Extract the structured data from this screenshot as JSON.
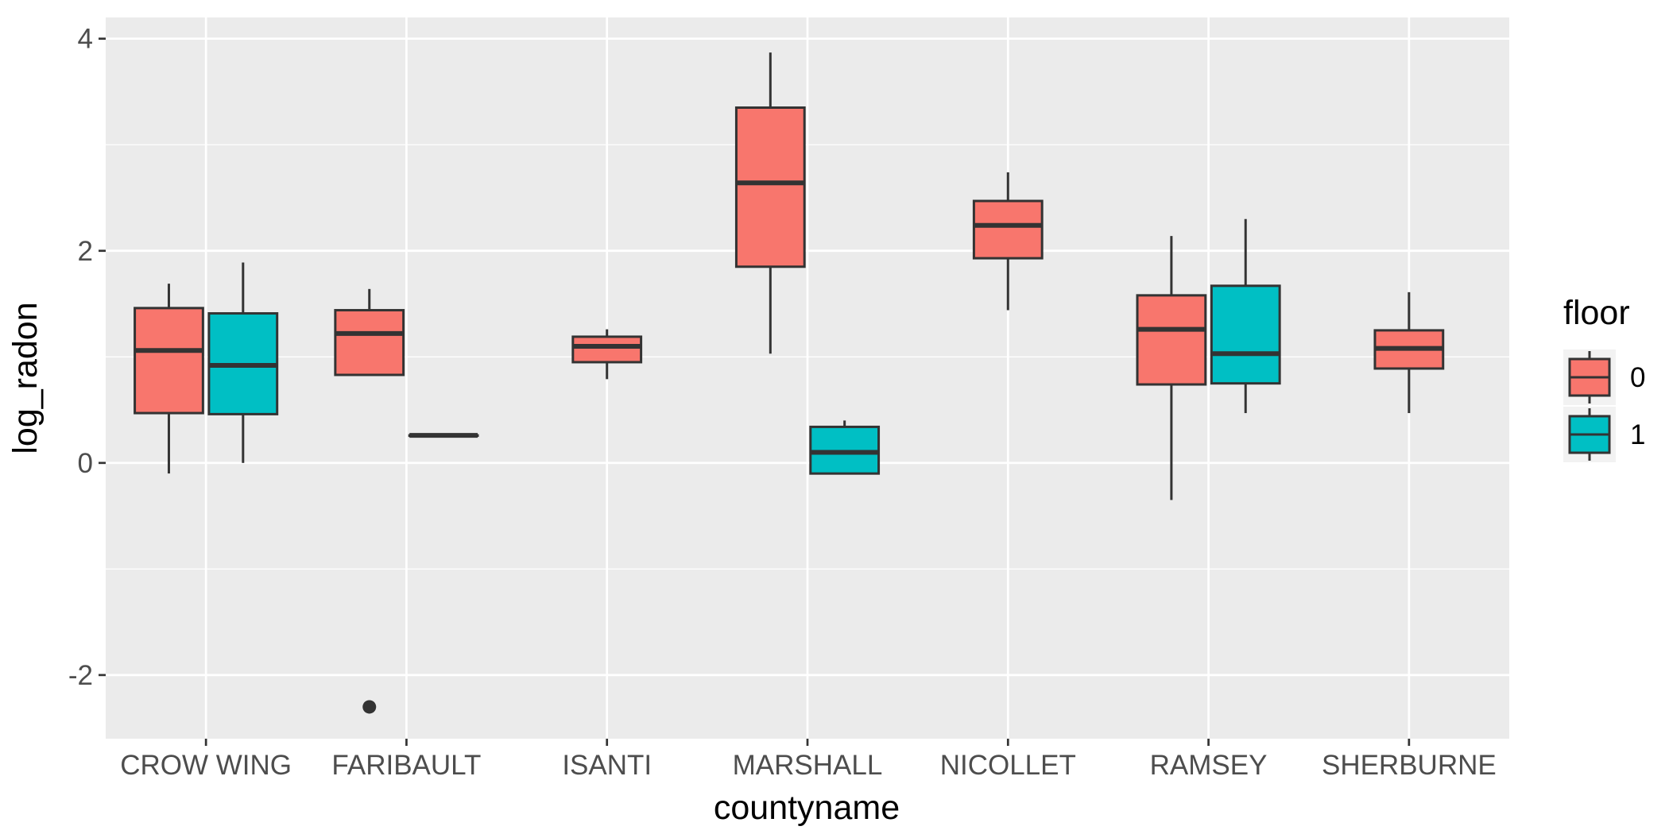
{
  "chart_data": {
    "type": "boxplot",
    "xlabel": "countyname",
    "ylabel": "log_radon",
    "ylim": [
      -2.6,
      4.2
    ],
    "yticks": [
      -2,
      0,
      2,
      4
    ],
    "ytick_labels": [
      "-2",
      "0",
      "2",
      "4"
    ],
    "grid": true,
    "categories": [
      "CROW WING",
      "FARIBAULT",
      "ISANTI",
      "MARSHALL",
      "NICOLLET",
      "RAMSEY",
      "SHERBURNE"
    ],
    "legend": {
      "title": "floor",
      "position": "right",
      "entries": [
        {
          "label": "0",
          "color": "#F8766D"
        },
        {
          "label": "1",
          "color": "#00BFC4"
        }
      ]
    },
    "boxes": [
      {
        "category": "CROW WING",
        "floor": "0",
        "lower_whisker": -0.1,
        "q1": 0.47,
        "median": 1.06,
        "q3": 1.46,
        "upper_whisker": 1.69,
        "outliers": []
      },
      {
        "category": "CROW WING",
        "floor": "1",
        "lower_whisker": 0.0,
        "q1": 0.46,
        "median": 0.92,
        "q3": 1.41,
        "upper_whisker": 1.89,
        "outliers": []
      },
      {
        "category": "FARIBAULT",
        "floor": "0",
        "lower_whisker": 0.83,
        "q1": 0.83,
        "median": 1.22,
        "q3": 1.44,
        "upper_whisker": 1.64,
        "outliers": [
          -2.3
        ]
      },
      {
        "category": "FARIBAULT",
        "floor": "1",
        "lower_whisker": 0.26,
        "q1": 0.26,
        "median": 0.26,
        "q3": 0.26,
        "upper_whisker": 0.26,
        "outliers": []
      },
      {
        "category": "ISANTI",
        "floor": "0",
        "lower_whisker": 0.79,
        "q1": 0.95,
        "median": 1.1,
        "q3": 1.19,
        "upper_whisker": 1.26,
        "outliers": []
      },
      {
        "category": "MARSHALL",
        "floor": "0",
        "lower_whisker": 1.03,
        "q1": 1.85,
        "median": 2.64,
        "q3": 3.35,
        "upper_whisker": 3.87,
        "outliers": []
      },
      {
        "category": "MARSHALL",
        "floor": "1",
        "lower_whisker": -0.1,
        "q1": -0.1,
        "median": 0.1,
        "q3": 0.34,
        "upper_whisker": 0.4,
        "outliers": []
      },
      {
        "category": "NICOLLET",
        "floor": "0",
        "lower_whisker": 1.44,
        "q1": 1.93,
        "median": 2.24,
        "q3": 2.47,
        "upper_whisker": 2.74,
        "outliers": []
      },
      {
        "category": "RAMSEY",
        "floor": "0",
        "lower_whisker": -0.35,
        "q1": 0.74,
        "median": 1.26,
        "q3": 1.58,
        "upper_whisker": 2.14,
        "outliers": []
      },
      {
        "category": "RAMSEY",
        "floor": "1",
        "lower_whisker": 0.47,
        "q1": 0.75,
        "median": 1.03,
        "q3": 1.67,
        "upper_whisker": 2.3,
        "outliers": []
      },
      {
        "category": "SHERBURNE",
        "floor": "0",
        "lower_whisker": 0.47,
        "q1": 0.89,
        "median": 1.08,
        "q3": 1.25,
        "upper_whisker": 1.61,
        "outliers": []
      }
    ]
  }
}
